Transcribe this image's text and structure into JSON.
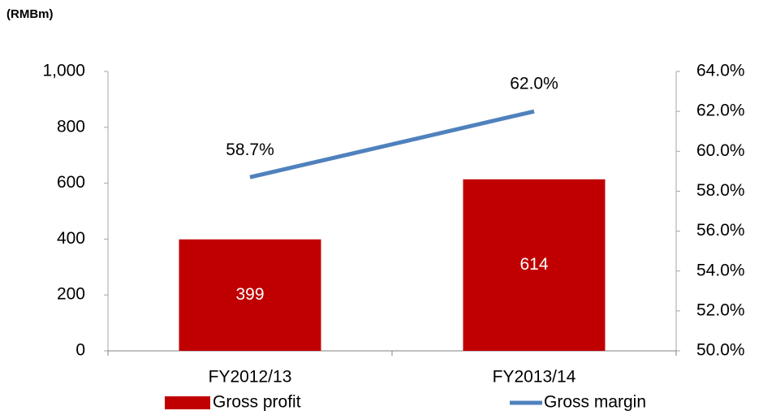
{
  "chart_data": {
    "type": "bar",
    "unit_label": "(RMBm)",
    "categories": [
      "FY2012/13",
      "FY2013/14"
    ],
    "series": [
      {
        "name": "Gross profit",
        "type": "bar",
        "color": "#c00000",
        "values": [
          399,
          614
        ]
      },
      {
        "name": "Gross margin",
        "type": "line",
        "axis": "y2",
        "color": "#4f81bd",
        "values": [
          58.7,
          62.0
        ],
        "value_labels": [
          "58.7%",
          "62.0%"
        ]
      }
    ],
    "ylim": [
      0,
      1000
    ],
    "yticks": [
      0,
      200,
      400,
      600,
      800,
      {
        "value": 1000,
        "label": "1,000"
      }
    ],
    "y2lim": [
      50,
      64
    ],
    "y2ticks": [
      {
        "value": 50,
        "label": "50.0%"
      },
      {
        "value": 52,
        "label": "52.0%"
      },
      {
        "value": 54,
        "label": "54.0%"
      },
      {
        "value": 56,
        "label": "56.0%"
      },
      {
        "value": 58,
        "label": "58.0%"
      },
      {
        "value": 60,
        "label": "60.0%"
      },
      {
        "value": 62,
        "label": "62.0%"
      },
      {
        "value": 64,
        "label": "64.0%"
      }
    ],
    "grid": false,
    "legend": "bottom"
  }
}
